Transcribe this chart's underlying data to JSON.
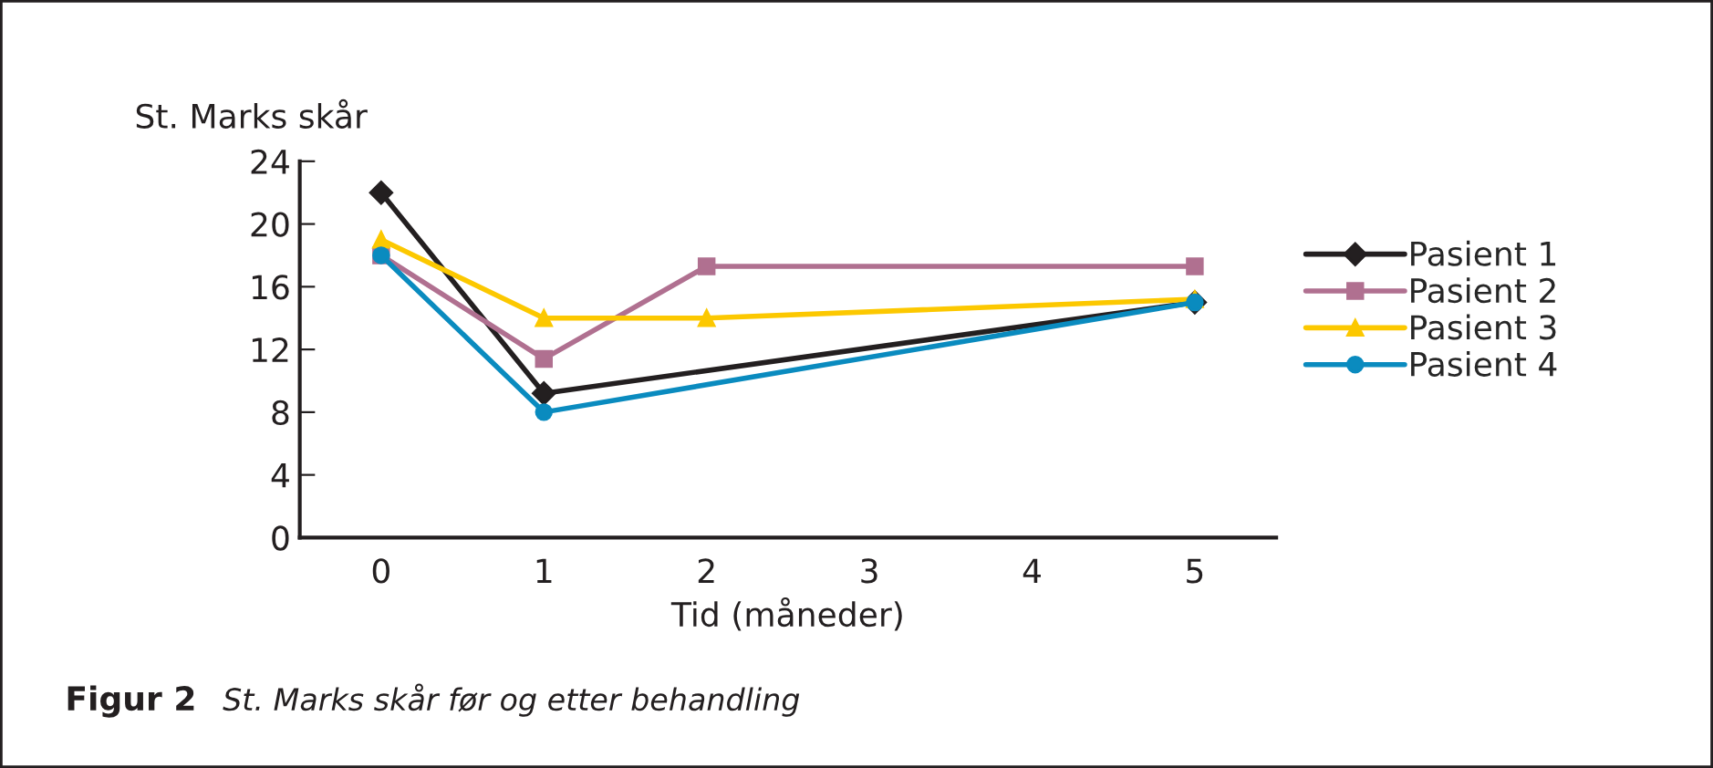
{
  "chart_data": {
    "type": "line",
    "ylabel": "St. Marks skår",
    "xlabel": "Tid (måneder)",
    "annotations": [
      "Figur 2",
      "St. Marks skår før og etter behandling"
    ],
    "xlim": [
      -0.5,
      5.5
    ],
    "xticks": [
      0,
      1,
      2,
      3,
      4,
      5
    ],
    "ylim": [
      0,
      24
    ],
    "yticks": [
      0,
      4,
      8,
      12,
      16,
      20,
      24
    ],
    "grid": false,
    "legend": "right",
    "line_style": "solid",
    "series": [
      {
        "name": "Pasient 1",
        "color": "#231f20",
        "marker": "diamond",
        "x": [
          0,
          1,
          5
        ],
        "values": [
          22,
          9.2,
          15
        ]
      },
      {
        "name": "Pasient 2",
        "color": "#b07090",
        "marker": "square",
        "x": [
          0,
          1,
          2,
          5
        ],
        "values": [
          18,
          11.4,
          17.3,
          17.3
        ]
      },
      {
        "name": "Pasient 3",
        "color": "#fcc800",
        "marker": "triangle",
        "x": [
          0,
          1,
          2,
          5
        ],
        "values": [
          19,
          14,
          14,
          15.2
        ]
      },
      {
        "name": "Pasient 4",
        "color": "#0a8bbf",
        "marker": "circle",
        "x": [
          0,
          1,
          5
        ],
        "values": [
          18,
          8,
          15
        ]
      }
    ]
  }
}
